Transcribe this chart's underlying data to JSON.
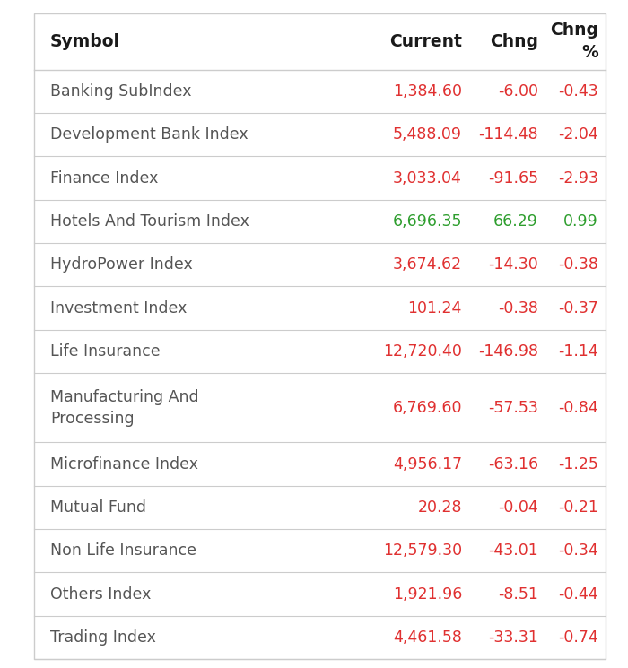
{
  "rows": [
    {
      "symbol": "Banking SubIndex",
      "current": "1,384.60",
      "chng": "-6.00",
      "chng_pct": "-0.43",
      "current_color": "#e03030",
      "chng_color": "#e03030",
      "chng_pct_color": "#e03030"
    },
    {
      "symbol": "Development Bank Index",
      "current": "5,488.09",
      "chng": "-114.48",
      "chng_pct": "-2.04",
      "current_color": "#e03030",
      "chng_color": "#e03030",
      "chng_pct_color": "#e03030"
    },
    {
      "symbol": "Finance Index",
      "current": "3,033.04",
      "chng": "-91.65",
      "chng_pct": "-2.93",
      "current_color": "#e03030",
      "chng_color": "#e03030",
      "chng_pct_color": "#e03030"
    },
    {
      "symbol": "Hotels And Tourism Index",
      "current": "6,696.35",
      "chng": "66.29",
      "chng_pct": "0.99",
      "current_color": "#2e9e2e",
      "chng_color": "#2e9e2e",
      "chng_pct_color": "#2e9e2e"
    },
    {
      "symbol": "HydroPower Index",
      "current": "3,674.62",
      "chng": "-14.30",
      "chng_pct": "-0.38",
      "current_color": "#e03030",
      "chng_color": "#e03030",
      "chng_pct_color": "#e03030"
    },
    {
      "symbol": "Investment Index",
      "current": "101.24",
      "chng": "-0.38",
      "chng_pct": "-0.37",
      "current_color": "#e03030",
      "chng_color": "#e03030",
      "chng_pct_color": "#e03030"
    },
    {
      "symbol": "Life Insurance",
      "current": "12,720.40",
      "chng": "-146.98",
      "chng_pct": "-1.14",
      "current_color": "#e03030",
      "chng_color": "#e03030",
      "chng_pct_color": "#e03030"
    },
    {
      "symbol": "Manufacturing And\nProcessing",
      "current": "6,769.60",
      "chng": "-57.53",
      "chng_pct": "-0.84",
      "current_color": "#e03030",
      "chng_color": "#e03030",
      "chng_pct_color": "#e03030"
    },
    {
      "symbol": "Microfinance Index",
      "current": "4,956.17",
      "chng": "-63.16",
      "chng_pct": "-1.25",
      "current_color": "#e03030",
      "chng_color": "#e03030",
      "chng_pct_color": "#e03030"
    },
    {
      "symbol": "Mutual Fund",
      "current": "20.28",
      "chng": "-0.04",
      "chng_pct": "-0.21",
      "current_color": "#e03030",
      "chng_color": "#e03030",
      "chng_pct_color": "#e03030"
    },
    {
      "symbol": "Non Life Insurance",
      "current": "12,579.30",
      "chng": "-43.01",
      "chng_pct": "-0.34",
      "current_color": "#e03030",
      "chng_color": "#e03030",
      "chng_pct_color": "#e03030"
    },
    {
      "symbol": "Others Index",
      "current": "1,921.96",
      "chng": "-8.51",
      "chng_pct": "-0.44",
      "current_color": "#e03030",
      "chng_color": "#e03030",
      "chng_pct_color": "#e03030"
    },
    {
      "symbol": "Trading Index",
      "current": "4,461.58",
      "chng": "-33.31",
      "chng_pct": "-0.74",
      "current_color": "#e03030",
      "chng_color": "#e03030",
      "chng_pct_color": "#e03030"
    }
  ],
  "bg_color": "#ffffff",
  "header_text_color": "#1a1a1a",
  "symbol_text_color": "#555555",
  "border_color": "#cccccc",
  "header_fontsize": 13.5,
  "data_fontsize": 12.5,
  "fig_width": 7.0,
  "fig_height": 7.45,
  "dpi": 100
}
